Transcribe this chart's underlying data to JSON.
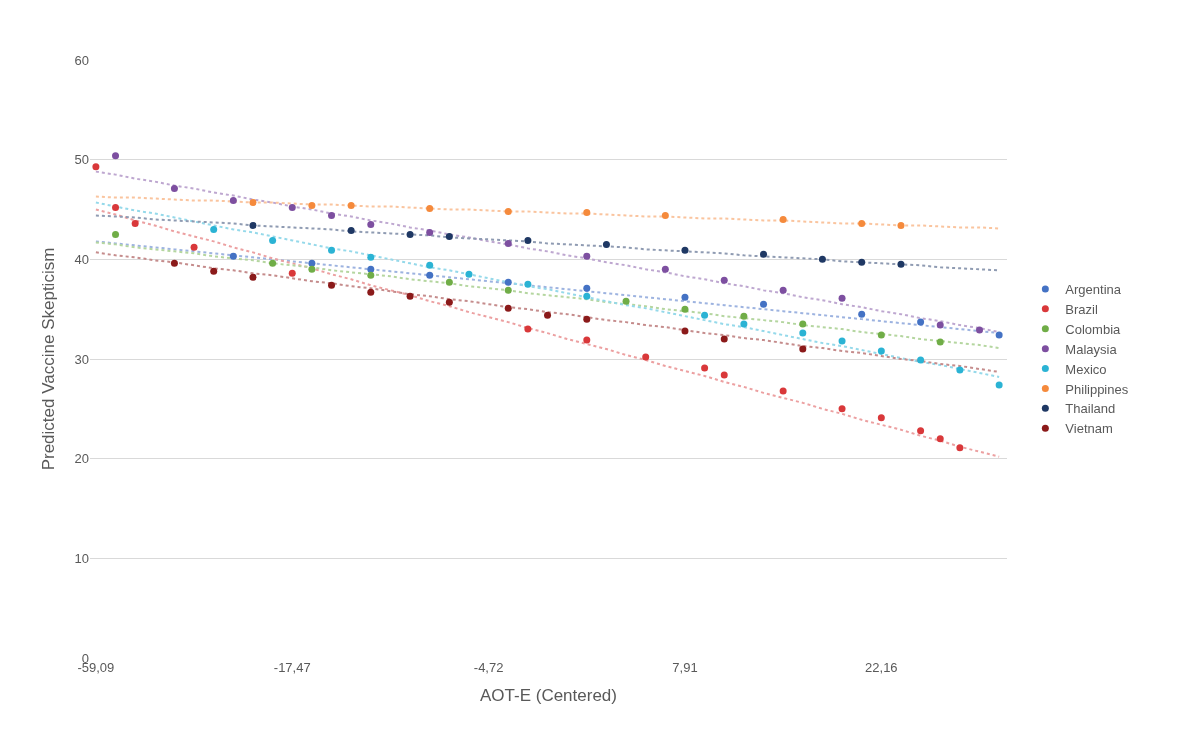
{
  "chart_data": {
    "type": "scatter",
    "xlabel": "AOT-E (Centered)",
    "ylabel": "Predicted Vaccine Skepticism",
    "categories": [
      "-59,09",
      null,
      null,
      null,
      null,
      null,
      null,
      null,
      null,
      null,
      "-17,47",
      null,
      null,
      null,
      null,
      null,
      null,
      null,
      null,
      null,
      "-4,72",
      null,
      null,
      null,
      null,
      null,
      null,
      null,
      null,
      null,
      "7,91",
      null,
      null,
      null,
      null,
      null,
      null,
      null,
      null,
      null,
      "22,16",
      null,
      null,
      null,
      null,
      null,
      null
    ],
    "ylim": [
      0,
      60
    ],
    "yticks": [
      0,
      10,
      20,
      30,
      40,
      50,
      60
    ],
    "grid": "y",
    "legend": "right",
    "marker": "circle",
    "series": [
      {
        "name": "Argentina",
        "color": "#4472c4",
        "values": [
          null,
          null,
          null,
          null,
          null,
          null,
          null,
          40.3,
          null,
          null,
          null,
          39.6,
          null,
          null,
          39.0,
          null,
          null,
          38.4,
          null,
          null,
          null,
          37.7,
          null,
          null,
          null,
          37.1,
          null,
          null,
          null,
          null,
          36.2,
          null,
          null,
          null,
          35.5,
          null,
          null,
          null,
          null,
          34.5,
          null,
          null,
          33.7,
          null,
          null,
          null,
          32.4
        ]
      },
      {
        "name": "Brazil",
        "color": "#d9383a",
        "values": [
          49.3,
          45.2,
          43.6,
          null,
          null,
          41.2,
          null,
          null,
          null,
          null,
          38.6,
          null,
          null,
          null,
          null,
          null,
          null,
          null,
          null,
          null,
          null,
          null,
          33.0,
          null,
          null,
          31.9,
          null,
          null,
          30.2,
          null,
          null,
          29.1,
          28.4,
          null,
          null,
          26.8,
          null,
          null,
          25.0,
          null,
          24.1,
          null,
          22.8,
          22.0,
          21.1,
          null,
          null
        ]
      },
      {
        "name": "Colombia",
        "color": "#70ad47",
        "values": [
          null,
          42.5,
          null,
          null,
          null,
          null,
          null,
          null,
          null,
          39.6,
          null,
          39.0,
          null,
          null,
          38.4,
          null,
          null,
          null,
          37.7,
          null,
          null,
          36.9,
          null,
          null,
          null,
          null,
          null,
          35.8,
          null,
          null,
          35.0,
          null,
          null,
          34.3,
          null,
          null,
          33.5,
          null,
          null,
          null,
          32.4,
          null,
          null,
          31.7,
          null,
          null,
          null
        ]
      },
      {
        "name": "Malaysia",
        "color": "#7d4fa0",
        "values": [
          null,
          50.4,
          null,
          null,
          47.1,
          null,
          null,
          45.9,
          null,
          null,
          45.2,
          null,
          44.4,
          null,
          43.5,
          null,
          null,
          42.7,
          null,
          null,
          null,
          41.6,
          null,
          null,
          null,
          40.3,
          null,
          null,
          null,
          39.0,
          null,
          null,
          37.9,
          null,
          null,
          36.9,
          null,
          null,
          36.1,
          null,
          null,
          null,
          null,
          33.4,
          null,
          32.9,
          null
        ]
      },
      {
        "name": "Mexico",
        "color": "#2bb3d4",
        "values": [
          null,
          null,
          null,
          null,
          null,
          null,
          43.0,
          null,
          null,
          41.9,
          null,
          null,
          40.9,
          null,
          40.2,
          null,
          null,
          39.4,
          null,
          38.5,
          null,
          null,
          37.5,
          null,
          null,
          36.3,
          null,
          null,
          null,
          null,
          null,
          34.4,
          null,
          33.5,
          null,
          null,
          32.6,
          null,
          31.8,
          null,
          30.8,
          null,
          29.9,
          null,
          28.9,
          null,
          27.4
        ]
      },
      {
        "name": "Philippines",
        "color": "#f58a3c",
        "values": [
          null,
          null,
          null,
          null,
          null,
          null,
          null,
          null,
          45.7,
          null,
          null,
          45.4,
          null,
          45.4,
          null,
          null,
          null,
          45.1,
          null,
          null,
          null,
          44.8,
          null,
          null,
          null,
          44.7,
          null,
          null,
          null,
          44.4,
          null,
          null,
          null,
          null,
          null,
          44.0,
          null,
          null,
          null,
          43.6,
          null,
          43.4,
          null,
          null,
          null,
          null,
          null
        ]
      },
      {
        "name": "Thailand",
        "color": "#1f3864",
        "values": [
          null,
          null,
          null,
          null,
          null,
          null,
          null,
          null,
          43.4,
          null,
          null,
          null,
          null,
          42.9,
          null,
          null,
          42.5,
          null,
          42.3,
          null,
          null,
          null,
          41.9,
          null,
          null,
          null,
          41.5,
          null,
          null,
          null,
          40.9,
          null,
          null,
          null,
          40.5,
          null,
          null,
          40.0,
          null,
          39.7,
          null,
          39.5,
          null,
          null,
          null,
          null,
          null
        ]
      },
      {
        "name": "Vietnam",
        "color": "#8b1a1a",
        "values": [
          null,
          null,
          null,
          null,
          39.6,
          null,
          38.8,
          null,
          38.2,
          null,
          null,
          null,
          37.4,
          null,
          36.7,
          null,
          36.3,
          null,
          35.7,
          null,
          null,
          35.1,
          null,
          34.4,
          null,
          34.0,
          null,
          null,
          null,
          null,
          32.8,
          null,
          32.0,
          null,
          null,
          null,
          31.0,
          null,
          null,
          null,
          null,
          null,
          null,
          null,
          null,
          null,
          null
        ]
      },
      {
        "type": "line",
        "line_style": "dotted",
        "marker": "none",
        "color": "#9db3e0",
        "values": [
          41.8,
          41.6,
          41.4,
          41.2,
          41.0,
          40.8,
          40.6,
          40.4,
          40.2,
          40.0,
          39.8,
          39.6,
          39.4,
          39.2,
          39.0,
          38.8,
          38.6,
          38.4,
          38.2,
          38.0,
          37.8,
          37.6,
          37.4,
          37.2,
          37.0,
          36.8,
          36.6,
          36.4,
          36.2,
          36.0,
          35.8,
          35.6,
          35.4,
          35.2,
          35.0,
          34.8,
          34.6,
          34.4,
          34.2,
          34.0,
          33.8,
          33.6,
          33.4,
          33.2,
          33.0,
          32.8,
          32.6
        ]
      },
      {
        "type": "line",
        "line_style": "dotted",
        "marker": "none",
        "color": "#eca0a1",
        "values": [
          45.0,
          44.5,
          43.9,
          43.4,
          42.8,
          42.3,
          41.8,
          41.2,
          40.7,
          40.1,
          39.6,
          39.1,
          38.5,
          38.0,
          37.4,
          36.9,
          36.4,
          35.8,
          35.3,
          34.7,
          34.2,
          33.7,
          33.1,
          32.6,
          32.0,
          31.5,
          31.0,
          30.4,
          29.9,
          29.3,
          28.8,
          28.3,
          27.7,
          27.2,
          26.6,
          26.1,
          25.6,
          25.0,
          24.5,
          23.9,
          23.4,
          22.9,
          22.3,
          21.8,
          21.2,
          20.7,
          20.2
        ]
      },
      {
        "type": "line",
        "line_style": "dotted",
        "marker": "none",
        "color": "#b5d6a0",
        "values": [
          41.7,
          41.5,
          41.2,
          41.0,
          40.8,
          40.6,
          40.3,
          40.1,
          39.9,
          39.6,
          39.4,
          39.2,
          38.9,
          38.7,
          38.5,
          38.3,
          38.0,
          37.8,
          37.6,
          37.3,
          37.1,
          36.9,
          36.6,
          36.4,
          36.2,
          36.0,
          35.7,
          35.5,
          35.3,
          35.0,
          34.8,
          34.6,
          34.3,
          34.1,
          33.9,
          33.7,
          33.4,
          33.2,
          33.0,
          32.7,
          32.5,
          32.3,
          32.0,
          31.8,
          31.6,
          31.4,
          31.1
        ]
      },
      {
        "type": "line",
        "line_style": "dotted",
        "marker": "none",
        "color": "#bea7d0",
        "values": [
          48.8,
          48.5,
          48.1,
          47.8,
          47.4,
          47.1,
          46.7,
          46.4,
          46.0,
          45.7,
          45.3,
          45.0,
          44.6,
          44.3,
          43.9,
          43.6,
          43.2,
          42.9,
          42.5,
          42.2,
          41.8,
          41.5,
          41.1,
          40.8,
          40.4,
          40.1,
          39.7,
          39.4,
          39.0,
          38.7,
          38.3,
          38.0,
          37.6,
          37.3,
          36.9,
          36.6,
          36.2,
          35.9,
          35.5,
          35.2,
          34.8,
          34.5,
          34.1,
          33.8,
          33.4,
          33.1,
          32.7
        ]
      },
      {
        "type": "line",
        "line_style": "dotted",
        "marker": "none",
        "color": "#95d9ea",
        "values": [
          45.7,
          45.3,
          44.9,
          44.6,
          44.2,
          43.8,
          43.4,
          43.0,
          42.7,
          42.3,
          41.9,
          41.5,
          41.1,
          40.8,
          40.4,
          40.0,
          39.6,
          39.2,
          38.9,
          38.5,
          38.1,
          37.7,
          37.3,
          37.0,
          36.6,
          36.2,
          35.8,
          35.4,
          35.1,
          34.7,
          34.3,
          33.9,
          33.5,
          33.2,
          32.8,
          32.4,
          32.0,
          31.6,
          31.3,
          30.9,
          30.5,
          30.1,
          29.7,
          29.4,
          29.0,
          28.6,
          28.2
        ]
      },
      {
        "type": "line",
        "line_style": "dotted",
        "marker": "none",
        "color": "#fac49e",
        "values": [
          46.3,
          46.2,
          46.2,
          46.1,
          46.0,
          45.9,
          45.9,
          45.8,
          45.7,
          45.7,
          45.6,
          45.5,
          45.5,
          45.4,
          45.3,
          45.3,
          45.2,
          45.1,
          45.0,
          45.0,
          44.9,
          44.8,
          44.8,
          44.7,
          44.6,
          44.6,
          44.5,
          44.4,
          44.3,
          44.3,
          44.2,
          44.1,
          44.1,
          44.0,
          43.9,
          43.9,
          43.8,
          43.7,
          43.6,
          43.6,
          43.5,
          43.4,
          43.4,
          43.3,
          43.2,
          43.2,
          43.1
        ]
      },
      {
        "type": "line",
        "line_style": "dotted",
        "marker": "none",
        "color": "#8f9bb2",
        "values": [
          44.4,
          44.3,
          44.2,
          44.0,
          43.9,
          43.8,
          43.7,
          43.6,
          43.4,
          43.3,
          43.2,
          43.1,
          43.0,
          42.8,
          42.7,
          42.6,
          42.5,
          42.4,
          42.2,
          42.1,
          42.0,
          41.9,
          41.8,
          41.6,
          41.5,
          41.4,
          41.3,
          41.2,
          41.0,
          40.9,
          40.8,
          40.7,
          40.6,
          40.4,
          40.3,
          40.2,
          40.1,
          40.0,
          39.8,
          39.7,
          39.6,
          39.5,
          39.4,
          39.2,
          39.1,
          39.0,
          38.9
        ]
      },
      {
        "type": "line",
        "line_style": "dotted",
        "marker": "none",
        "color": "#c58c8c",
        "values": [
          40.7,
          40.4,
          40.2,
          39.9,
          39.7,
          39.4,
          39.1,
          38.9,
          38.6,
          38.4,
          38.1,
          37.8,
          37.6,
          37.3,
          37.1,
          36.8,
          36.5,
          36.3,
          36.0,
          35.8,
          35.5,
          35.2,
          35.0,
          34.7,
          34.5,
          34.2,
          33.9,
          33.7,
          33.4,
          33.2,
          32.9,
          32.6,
          32.4,
          32.1,
          31.9,
          31.6,
          31.3,
          31.1,
          30.8,
          30.6,
          30.3,
          30.0,
          29.8,
          29.5,
          29.3,
          29.0,
          28.7
        ]
      }
    ]
  }
}
